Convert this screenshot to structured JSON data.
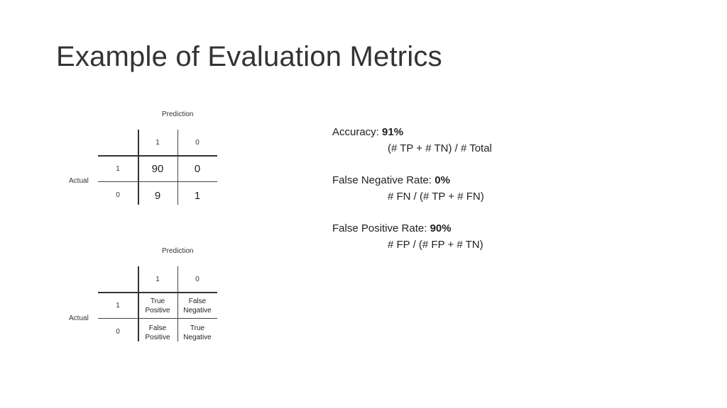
{
  "title": "Example of Evaluation Metrics",
  "matrix_values": {
    "prediction_label": "Prediction",
    "actual_label": "Actual",
    "col_headers": [
      "1",
      "0"
    ],
    "row_headers": [
      "1",
      "0"
    ],
    "cells": [
      [
        "90",
        "0"
      ],
      [
        "9",
        "1"
      ]
    ]
  },
  "matrix_legend": {
    "prediction_label": "Prediction",
    "actual_label": "Actual",
    "col_headers": [
      "1",
      "0"
    ],
    "row_headers": [
      "1",
      "0"
    ],
    "cells": [
      [
        [
          "True",
          "Positive"
        ],
        [
          "False",
          "Negative"
        ]
      ],
      [
        [
          "False",
          "Positive"
        ],
        [
          "True",
          "Negative"
        ]
      ]
    ]
  },
  "metrics": [
    {
      "label": "Accuracy: ",
      "value": "91%",
      "formula": "(# TP + # TN) / # Total"
    },
    {
      "label": "False Negative Rate: ",
      "value": "0%",
      "formula": "# FN / (# TP + # FN)"
    },
    {
      "label": "False Positive Rate: ",
      "value": "90%",
      "formula": "# FP / (# FP + # TN)"
    }
  ]
}
